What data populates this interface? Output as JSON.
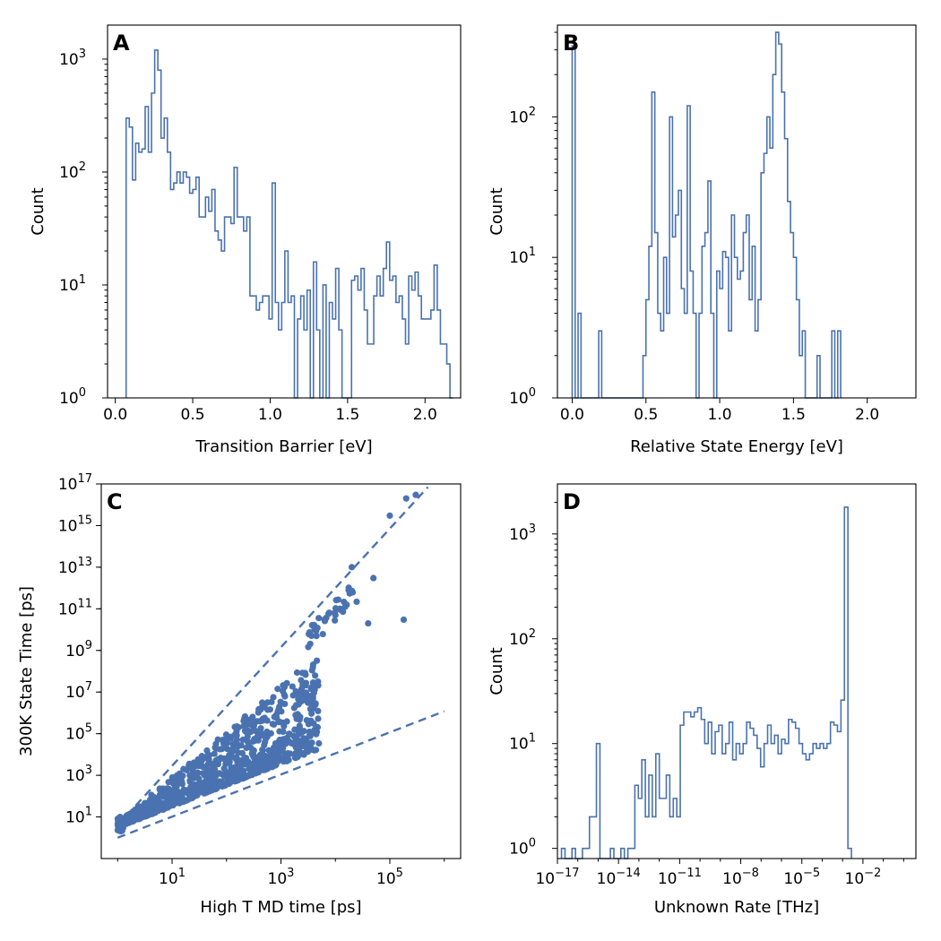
{
  "panels": [
    {
      "letter": "A",
      "xlabel": "Transition Barrier [eV]",
      "ylabel": "Count",
      "yticks": [
        {
          "exp": "0"
        },
        {
          "exp": "1"
        },
        {
          "exp": "2"
        },
        {
          "exp": "3"
        }
      ],
      "xticks": [
        "0.0",
        "0.5",
        "1.0",
        "1.5",
        "2.0"
      ]
    },
    {
      "letter": "B",
      "xlabel": "Relative State Energy [eV]",
      "ylabel": "Count",
      "yticks": [
        {
          "exp": "0"
        },
        {
          "exp": "1"
        },
        {
          "exp": "2"
        }
      ],
      "xticks": [
        "0.0",
        "0.5",
        "1.0",
        "1.5",
        "2.0"
      ]
    },
    {
      "letter": "C",
      "xlabel": "High T MD time [ps]",
      "ylabel": "300K State Time [ps]",
      "yticks": [
        {
          "exp": "1"
        },
        {
          "exp": "3"
        },
        {
          "exp": "5"
        },
        {
          "exp": "7"
        },
        {
          "exp": "9"
        },
        {
          "exp": "11"
        },
        {
          "exp": "13"
        },
        {
          "exp": "15"
        },
        {
          "exp": "17"
        }
      ],
      "xticks": [
        {
          "exp": "1"
        },
        {
          "exp": "3"
        },
        {
          "exp": "5"
        }
      ]
    },
    {
      "letter": "D",
      "xlabel": "Unknown Rate [THz]",
      "ylabel": "Count",
      "yticks": [
        {
          "exp": "0"
        },
        {
          "exp": "1"
        },
        {
          "exp": "2"
        },
        {
          "exp": "3"
        }
      ],
      "xticks": [
        {
          "exp": "−17"
        },
        {
          "exp": "−14"
        },
        {
          "exp": "−11"
        },
        {
          "exp": "−8"
        },
        {
          "exp": "−5"
        },
        {
          "exp": "−2"
        }
      ]
    }
  ],
  "colors": {
    "series": "#4a72b0",
    "axis": "#000000"
  },
  "chart_data": [
    {
      "type": "bar",
      "panel": "A",
      "xlabel": "Transition Barrier [eV]",
      "ylabel": "Count",
      "yscale": "log",
      "xlim": [
        -0.05,
        2.23
      ],
      "ylim": [
        1,
        2000
      ],
      "bin_start": 0.07,
      "bin_width": 0.0205,
      "counts": [
        300,
        250,
        85,
        180,
        150,
        160,
        380,
        150,
        500,
        1200,
        800,
        200,
        300,
        150,
        70,
        80,
        100,
        80,
        100,
        90,
        65,
        70,
        90,
        40,
        40,
        60,
        45,
        70,
        30,
        25,
        20,
        40,
        40,
        35,
        110,
        40,
        40,
        30,
        40,
        8,
        8,
        6,
        7,
        8,
        8,
        5,
        80,
        7,
        4,
        7,
        20,
        7,
        8,
        1,
        5,
        8,
        4,
        9,
        1,
        16,
        4,
        1,
        10,
        1,
        7,
        5,
        14,
        4,
        1,
        1,
        1,
        11,
        12,
        9,
        14,
        6,
        3,
        3,
        8,
        12,
        8,
        14,
        24,
        11,
        12,
        7,
        8,
        5,
        3,
        12,
        9,
        13,
        8,
        5,
        5,
        5,
        6,
        15,
        6,
        3,
        3,
        2,
        1
      ]
    },
    {
      "type": "bar",
      "panel": "B",
      "xlabel": "Relative State Energy [eV]",
      "ylabel": "Count",
      "yscale": "log",
      "xlim": [
        -0.1,
        2.33
      ],
      "ylim": [
        1,
        450
      ],
      "bin_start": 0.0,
      "bin_width": 0.02,
      "counts": [
        320,
        1,
        4,
        1,
        1,
        1,
        1,
        1,
        1,
        3,
        1,
        1,
        1,
        1,
        1,
        1,
        1,
        1,
        1,
        1,
        1,
        1,
        1,
        1,
        2,
        5,
        12,
        150,
        15,
        4,
        3,
        10,
        4,
        100,
        14,
        20,
        30,
        6,
        4,
        120,
        8,
        4,
        1,
        4,
        12,
        15,
        35,
        4,
        1,
        8,
        6,
        11,
        10,
        3,
        20,
        10,
        7,
        8,
        15,
        20,
        5,
        12,
        3,
        5,
        40,
        55,
        100,
        60,
        200,
        400,
        330,
        150,
        70,
        25,
        15,
        10,
        5,
        2,
        3,
        1,
        1,
        1,
        1,
        2,
        1,
        1,
        1,
        1,
        3,
        1,
        3
      ]
    },
    {
      "type": "scatter",
      "panel": "C",
      "xlabel": "High T MD time [ps]",
      "ylabel": "300K State Time [ps]",
      "xscale": "log",
      "yscale": "log",
      "xlim": [
        0.5,
        2000000
      ],
      "ylim": [
        0.1,
        1e+17
      ],
      "reference_lines": [
        {
          "style": "dashed",
          "points": [
            [
              1,
              4
            ],
            [
              500000,
              7e+16
            ]
          ]
        },
        {
          "style": "dashed",
          "points": [
            [
              1,
              1
            ],
            [
              1000000,
              1200000.0
            ]
          ]
        }
      ],
      "highlight_points": [
        [
          300000,
          3e+16
        ],
        [
          200000,
          2e+16
        ],
        [
          100000,
          3000000000000000.0
        ],
        [
          10000,
          50000000000.0
        ],
        [
          40000,
          20000000000.0
        ],
        [
          50000,
          3000000000000.0
        ],
        [
          180000,
          30000000000.0
        ],
        [
          20000,
          10000000000000.0
        ]
      ]
    },
    {
      "type": "bar",
      "panel": "D",
      "xlabel": "Unknown Rate [THz]",
      "ylabel": "Count",
      "xscale": "log",
      "yscale": "log",
      "xlim_log10": [
        -17,
        0.6
      ],
      "ylim": [
        0.8,
        3000
      ],
      "bin_start_log10": -16.8,
      "bin_width_log10": 0.1715,
      "counts": [
        1,
        0,
        0,
        1,
        0,
        0,
        1,
        1,
        2,
        2,
        10,
        0,
        0,
        0,
        1,
        0,
        0,
        1,
        0,
        1,
        1,
        4,
        3,
        7,
        2,
        5,
        2,
        8,
        3,
        3,
        5,
        2,
        3,
        2,
        15,
        20,
        20,
        18,
        20,
        22,
        17,
        10,
        16,
        8,
        13,
        15,
        8,
        10,
        16,
        7,
        10,
        8,
        10,
        16,
        14,
        12,
        9,
        6,
        10,
        15,
        10,
        12,
        8,
        11,
        10,
        17,
        16,
        14,
        10,
        8,
        7,
        8,
        10,
        9,
        10,
        9,
        10,
        16,
        15,
        13,
        26,
        1800,
        1
      ]
    }
  ]
}
